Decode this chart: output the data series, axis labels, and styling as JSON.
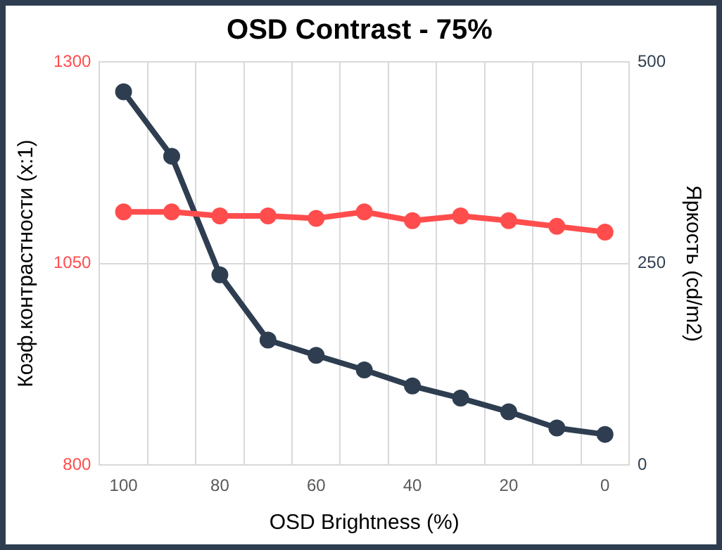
{
  "chart_data": {
    "type": "line",
    "title": "OSD Contrast - 75%",
    "xlabel": "OSD Brightness (%)",
    "ylabel": "Коэф.контрастности (x:1)",
    "y2label": "Яркость (cd/m2)",
    "categories": [
      "100",
      null,
      "80",
      null,
      "60",
      null,
      "40",
      null,
      "20",
      null,
      "0"
    ],
    "series": [
      {
        "color": "#ff4d4d",
        "values": [
          1114,
          1114,
          1109,
          1109,
          1106,
          1114,
          1103,
          1109,
          1103,
          1096,
          1089
        ]
      },
      {
        "color": "#2e3e50",
        "axis": "y2",
        "values": [
          463,
          383,
          236,
          155,
          136,
          118,
          98,
          83,
          66,
          46,
          38
        ]
      }
    ],
    "ylim": [
      800,
      1300
    ],
    "yticks": [
      800,
      1050,
      1300
    ],
    "y2lim": [
      0,
      500
    ],
    "y2ticks": [
      0,
      250,
      500
    ],
    "grid": true,
    "legend": false,
    "marker": "circle",
    "line_style": "solid"
  }
}
